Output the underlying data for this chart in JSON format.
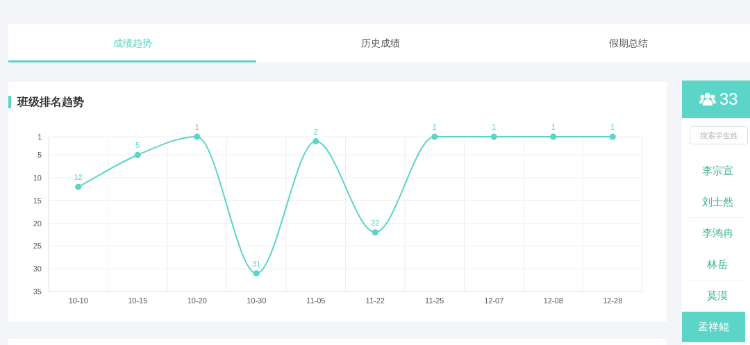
{
  "chart_data": [
    {
      "type": "other",
      "annotations": [
        "成绩趋势",
        "历史成绩",
        "假期总结"
      ]
    },
    {
      "type": "line",
      "title": "班级排名趋势",
      "categories": [
        "10-10",
        "10-15",
        "10-20",
        "10-30",
        "11-05",
        "11-22",
        "11-25",
        "12-07",
        "12-08",
        "12-28"
      ],
      "series": [
        {
          "color": "#5ad5c7",
          "values": [
            12,
            5,
            1,
            31,
            2,
            22,
            1,
            1,
            1,
            1
          ]
        }
      ],
      "ylim": [
        35,
        1
      ],
      "yticks": [
        1,
        5,
        10,
        15,
        20,
        25,
        30,
        35
      ],
      "grid": true,
      "data_labels": true,
      "marker": "circle",
      "line_style": "solid"
    },
    {
      "type": "other",
      "title": "33",
      "annotations": [
        "搜索学生姓",
        "李宗宣",
        "刘士然",
        "李鸿冉",
        "林岳",
        "莫漠",
        "孟祥鲲"
      ]
    }
  ]
}
